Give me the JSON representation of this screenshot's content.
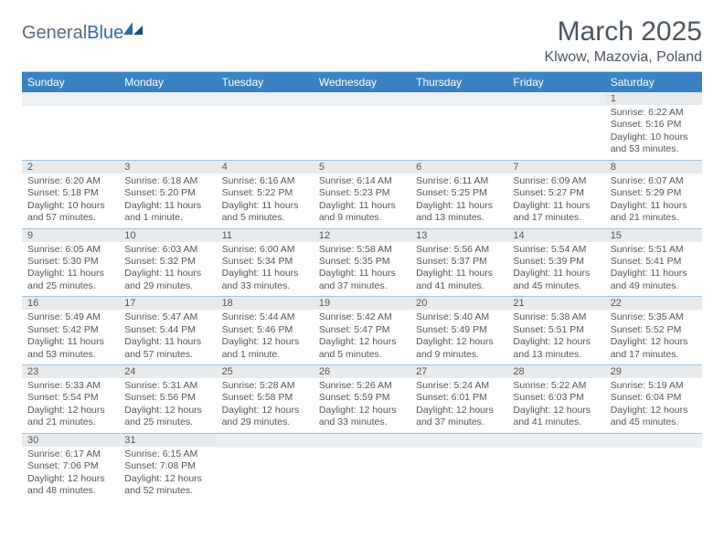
{
  "brand": {
    "name1": "General",
    "name2": "Blue"
  },
  "title": "March 2025",
  "location": "Klwow, Mazovia, Poland",
  "colors": {
    "header_bg": "#3a82c4",
    "header_text": "#ffffff",
    "daynum_bg": "#e8ebee",
    "cell_border": "#9ebfd9",
    "text": "#555555",
    "title_text": "#4a5560",
    "brand_gray": "#5a6b7a",
    "brand_blue": "#2f6aa8"
  },
  "weekdays": [
    "Sunday",
    "Monday",
    "Tuesday",
    "Wednesday",
    "Thursday",
    "Friday",
    "Saturday"
  ],
  "weeks": [
    [
      null,
      null,
      null,
      null,
      null,
      null,
      {
        "n": "1",
        "sr": "6:22 AM",
        "ss": "5:16 PM",
        "dl": "10 hours and 53 minutes."
      }
    ],
    [
      {
        "n": "2",
        "sr": "6:20 AM",
        "ss": "5:18 PM",
        "dl": "10 hours and 57 minutes."
      },
      {
        "n": "3",
        "sr": "6:18 AM",
        "ss": "5:20 PM",
        "dl": "11 hours and 1 minute."
      },
      {
        "n": "4",
        "sr": "6:16 AM",
        "ss": "5:22 PM",
        "dl": "11 hours and 5 minutes."
      },
      {
        "n": "5",
        "sr": "6:14 AM",
        "ss": "5:23 PM",
        "dl": "11 hours and 9 minutes."
      },
      {
        "n": "6",
        "sr": "6:11 AM",
        "ss": "5:25 PM",
        "dl": "11 hours and 13 minutes."
      },
      {
        "n": "7",
        "sr": "6:09 AM",
        "ss": "5:27 PM",
        "dl": "11 hours and 17 minutes."
      },
      {
        "n": "8",
        "sr": "6:07 AM",
        "ss": "5:29 PM",
        "dl": "11 hours and 21 minutes."
      }
    ],
    [
      {
        "n": "9",
        "sr": "6:05 AM",
        "ss": "5:30 PM",
        "dl": "11 hours and 25 minutes."
      },
      {
        "n": "10",
        "sr": "6:03 AM",
        "ss": "5:32 PM",
        "dl": "11 hours and 29 minutes."
      },
      {
        "n": "11",
        "sr": "6:00 AM",
        "ss": "5:34 PM",
        "dl": "11 hours and 33 minutes."
      },
      {
        "n": "12",
        "sr": "5:58 AM",
        "ss": "5:35 PM",
        "dl": "11 hours and 37 minutes."
      },
      {
        "n": "13",
        "sr": "5:56 AM",
        "ss": "5:37 PM",
        "dl": "11 hours and 41 minutes."
      },
      {
        "n": "14",
        "sr": "5:54 AM",
        "ss": "5:39 PM",
        "dl": "11 hours and 45 minutes."
      },
      {
        "n": "15",
        "sr": "5:51 AM",
        "ss": "5:41 PM",
        "dl": "11 hours and 49 minutes."
      }
    ],
    [
      {
        "n": "16",
        "sr": "5:49 AM",
        "ss": "5:42 PM",
        "dl": "11 hours and 53 minutes."
      },
      {
        "n": "17",
        "sr": "5:47 AM",
        "ss": "5:44 PM",
        "dl": "11 hours and 57 minutes."
      },
      {
        "n": "18",
        "sr": "5:44 AM",
        "ss": "5:46 PM",
        "dl": "12 hours and 1 minute."
      },
      {
        "n": "19",
        "sr": "5:42 AM",
        "ss": "5:47 PM",
        "dl": "12 hours and 5 minutes."
      },
      {
        "n": "20",
        "sr": "5:40 AM",
        "ss": "5:49 PM",
        "dl": "12 hours and 9 minutes."
      },
      {
        "n": "21",
        "sr": "5:38 AM",
        "ss": "5:51 PM",
        "dl": "12 hours and 13 minutes."
      },
      {
        "n": "22",
        "sr": "5:35 AM",
        "ss": "5:52 PM",
        "dl": "12 hours and 17 minutes."
      }
    ],
    [
      {
        "n": "23",
        "sr": "5:33 AM",
        "ss": "5:54 PM",
        "dl": "12 hours and 21 minutes."
      },
      {
        "n": "24",
        "sr": "5:31 AM",
        "ss": "5:56 PM",
        "dl": "12 hours and 25 minutes."
      },
      {
        "n": "25",
        "sr": "5:28 AM",
        "ss": "5:58 PM",
        "dl": "12 hours and 29 minutes."
      },
      {
        "n": "26",
        "sr": "5:26 AM",
        "ss": "5:59 PM",
        "dl": "12 hours and 33 minutes."
      },
      {
        "n": "27",
        "sr": "5:24 AM",
        "ss": "6:01 PM",
        "dl": "12 hours and 37 minutes."
      },
      {
        "n": "28",
        "sr": "5:22 AM",
        "ss": "6:03 PM",
        "dl": "12 hours and 41 minutes."
      },
      {
        "n": "29",
        "sr": "5:19 AM",
        "ss": "6:04 PM",
        "dl": "12 hours and 45 minutes."
      }
    ],
    [
      {
        "n": "30",
        "sr": "6:17 AM",
        "ss": "7:06 PM",
        "dl": "12 hours and 48 minutes."
      },
      {
        "n": "31",
        "sr": "6:15 AM",
        "ss": "7:08 PM",
        "dl": "12 hours and 52 minutes."
      },
      null,
      null,
      null,
      null,
      null
    ]
  ],
  "labels": {
    "sunrise": "Sunrise: ",
    "sunset": "Sunset: ",
    "daylight": "Daylight: "
  }
}
